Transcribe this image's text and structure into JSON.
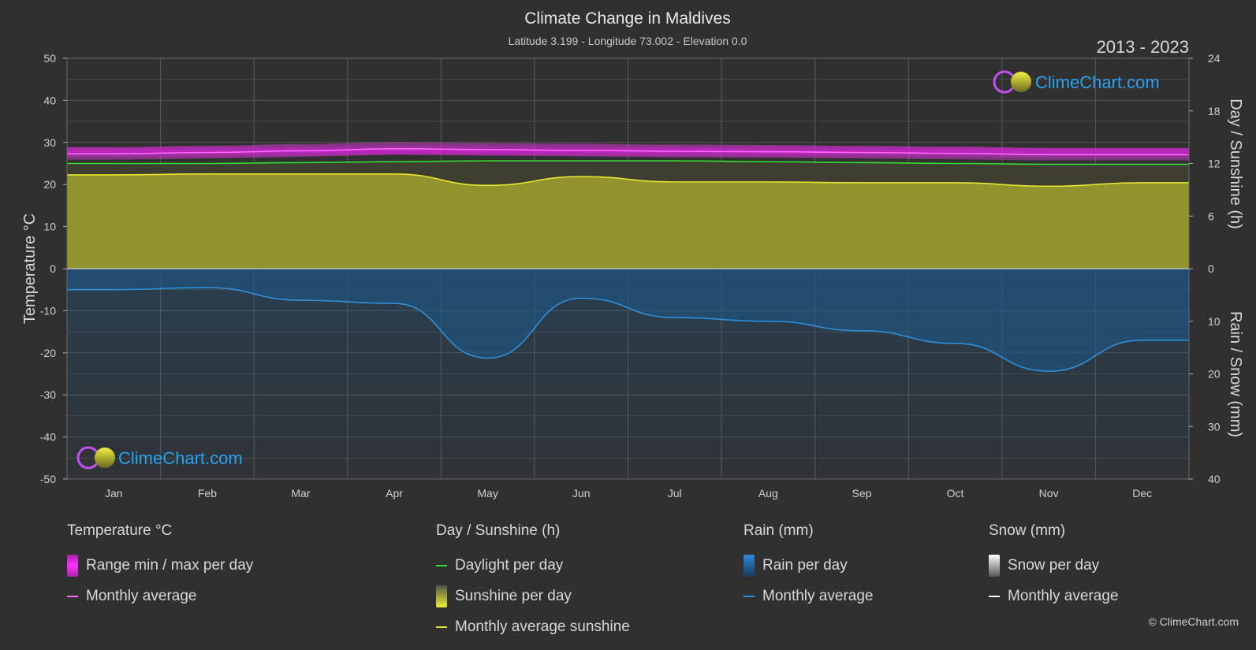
{
  "chart_data": {
    "type": "line",
    "title": "Climate Change in Maldives",
    "subtitle": "Latitude 3.199 - Longitude 73.002 - Elevation 0.0",
    "period": "2013 - 2023",
    "months": [
      "Jan",
      "Feb",
      "Mar",
      "Apr",
      "May",
      "Jun",
      "Jul",
      "Aug",
      "Sep",
      "Oct",
      "Nov",
      "Dec"
    ],
    "left_axis": {
      "label": "Temperature °C",
      "ticks": [
        "50",
        "40",
        "30",
        "20",
        "10",
        "0",
        "-10",
        "-20",
        "-30",
        "-40",
        "-50"
      ],
      "range": [
        -50,
        50
      ]
    },
    "right_axis_top": {
      "label": "Day / Sunshine (h)",
      "ticks": [
        "24",
        "18",
        "12",
        "6",
        "0"
      ],
      "range": [
        0,
        24
      ]
    },
    "right_axis_bottom": {
      "label": "Rain / Snow (mm)",
      "ticks": [
        "0",
        "10",
        "20",
        "30",
        "40"
      ],
      "range": [
        0,
        40
      ]
    },
    "grid": true,
    "series": [
      {
        "name": "Monthly average",
        "group": "Temperature °C",
        "unit": "°C",
        "color": "#ff66ff",
        "values": [
          27.3,
          27.6,
          28.0,
          28.5,
          28.3,
          28.1,
          27.9,
          27.8,
          27.6,
          27.4,
          27.1,
          27.1
        ]
      },
      {
        "name": "Daylight per day",
        "group": "Day / Sunshine (h)",
        "unit": "h",
        "color": "#33dd33",
        "values": [
          12.0,
          12.0,
          12.1,
          12.2,
          12.3,
          12.3,
          12.3,
          12.2,
          12.1,
          12.0,
          11.9,
          11.9
        ]
      },
      {
        "name": "Monthly average sunshine",
        "group": "Day / Sunshine (h)",
        "unit": "h",
        "color": "#e6e633",
        "values": [
          10.7,
          10.8,
          10.8,
          10.8,
          9.5,
          10.5,
          9.9,
          9.9,
          9.8,
          9.8,
          9.4,
          9.8
        ]
      },
      {
        "name": "Monthly average",
        "group": "Rain (mm)",
        "unit": "mm",
        "color": "#2e90dd",
        "values": [
          4.0,
          3.6,
          6.0,
          6.6,
          17.0,
          5.6,
          9.3,
          10.0,
          11.8,
          14.2,
          19.5,
          13.6
        ]
      }
    ]
  },
  "legend": {
    "temperature": {
      "title": "Temperature °C",
      "range": "Range min / max per day",
      "avg": "Monthly average"
    },
    "sunshine": {
      "title": "Day / Sunshine (h)",
      "daylight": "Daylight per day",
      "sunshine": "Sunshine per day",
      "avg": "Monthly average sunshine"
    },
    "rain": {
      "title": "Rain (mm)",
      "per_day": "Rain per day",
      "avg": "Monthly average"
    },
    "snow": {
      "title": "Snow (mm)",
      "per_day": "Snow per day",
      "avg": "Monthly average"
    }
  },
  "brand": {
    "logo_text": "ClimeChart.com",
    "copyright": "© ClimeChart.com"
  },
  "colors": {
    "background": "#303030",
    "temp_range": "#d822d8",
    "temp_avg": "#ff66ff",
    "daylight": "#33dd33",
    "sunshine_fill": "#9c9c2e",
    "sunshine_avg": "#e6e633",
    "rain_fill": "#1c5a8c",
    "rain_avg": "#2e90dd",
    "snow_avg": "#ffffff",
    "brand_text": "#2aa0f0"
  }
}
